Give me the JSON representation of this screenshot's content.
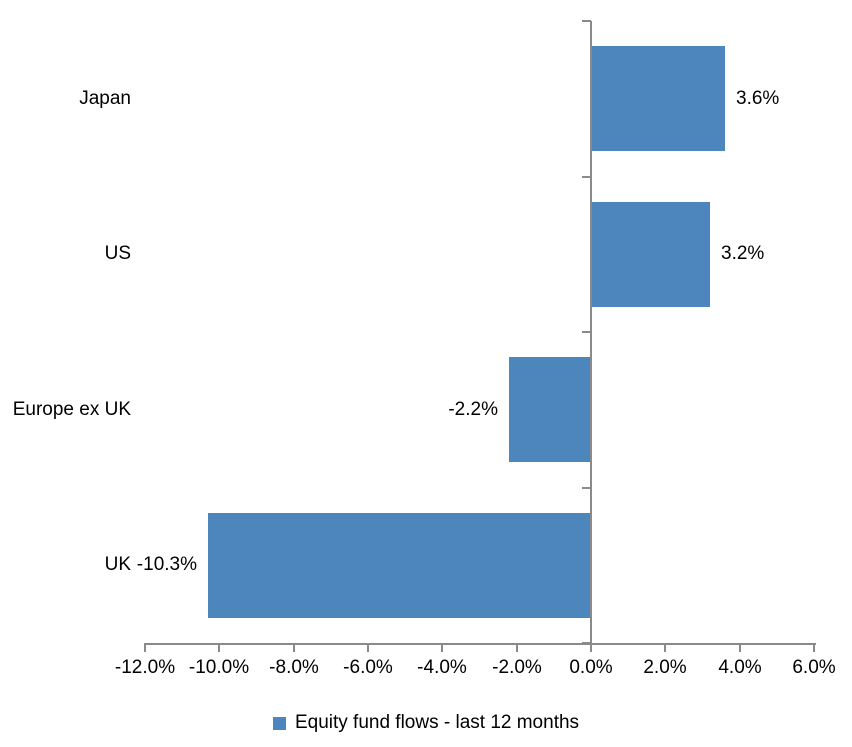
{
  "chart_data": {
    "type": "bar",
    "orientation": "horizontal",
    "title": "",
    "categories": [
      "Japan",
      "US",
      "Europe ex UK",
      "UK"
    ],
    "values": [
      3.6,
      3.2,
      -2.2,
      -10.3
    ],
    "data_labels": [
      "3.6%",
      "3.2%",
      "-2.2%",
      "-10.3%"
    ],
    "xlim": [
      -12,
      6
    ],
    "x_ticks": [
      -12,
      -10,
      -8,
      -6,
      -4,
      -2,
      0,
      2,
      4,
      6
    ],
    "x_tick_labels": [
      "-12.0%",
      "-10.0%",
      "-8.0%",
      "-6.0%",
      "-4.0%",
      "-2.0%",
      "0.0%",
      "2.0%",
      "4.0%",
      "6.0%"
    ],
    "grid": false,
    "legend_position": "bottom",
    "legend_label": "Equity fund flows - last 12 months",
    "bar_color": "#4D86BD",
    "axis_color": "#8A8A8A",
    "text_color": "#000000"
  }
}
